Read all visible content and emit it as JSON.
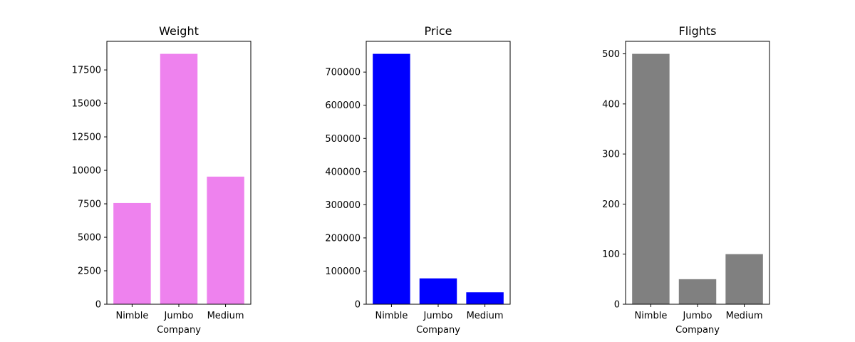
{
  "chart_data": [
    {
      "type": "bar",
      "title": "Weight",
      "xlabel": "Company",
      "ylabel": "",
      "categories": [
        "Nimble",
        "Jumbo",
        "Medium"
      ],
      "values": [
        7560,
        18700,
        9530
      ],
      "ylim": [
        0,
        19635
      ],
      "yticks": [
        0,
        2500,
        5000,
        7500,
        10000,
        12500,
        15000,
        17500
      ],
      "color": "#EE82EE",
      "grid": false
    },
    {
      "type": "bar",
      "title": "Price",
      "xlabel": "Company",
      "ylabel": "",
      "categories": [
        "Nimble",
        "Jumbo",
        "Medium"
      ],
      "values": [
        755000,
        78000,
        36000
      ],
      "ylim": [
        0,
        792750
      ],
      "yticks": [
        0,
        100000,
        200000,
        300000,
        400000,
        500000,
        600000,
        700000
      ],
      "color": "#0000FF",
      "grid": false
    },
    {
      "type": "bar",
      "title": "Flights",
      "xlabel": "Company",
      "ylabel": "",
      "categories": [
        "Nimble",
        "Jumbo",
        "Medium"
      ],
      "values": [
        500,
        50,
        100
      ],
      "ylim": [
        0,
        525
      ],
      "yticks": [
        0,
        100,
        200,
        300,
        400,
        500
      ],
      "color": "#808080",
      "grid": false
    }
  ]
}
